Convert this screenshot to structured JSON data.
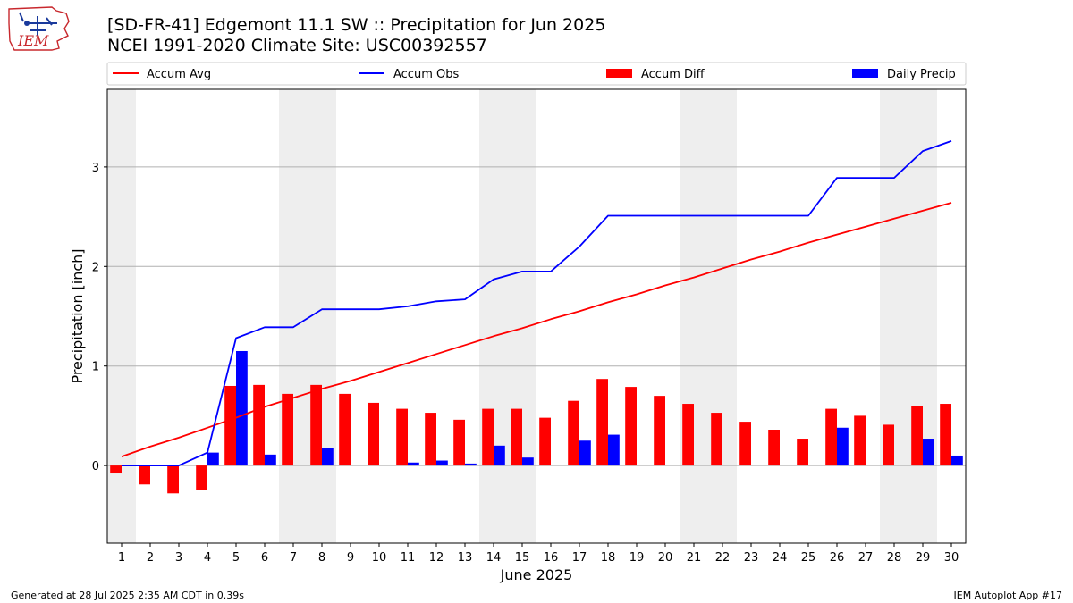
{
  "header": {
    "title_line1": "[SD-FR-41] Edgemont 11.1 SW :: Precipitation for Jun 2025",
    "title_line2": "NCEI 1991-2020 Climate Site: USC00392557"
  },
  "logo": {
    "text": "IEM",
    "icon": "iem-iowa-logo"
  },
  "footer": {
    "left": "Generated at 28 Jul 2025 2:35 AM CDT in 0.39s",
    "right": "IEM Autoplot App #17"
  },
  "colors": {
    "accum_avg": "#ff0000",
    "accum_obs": "#0000ff",
    "accum_diff": "#ff0000",
    "daily_precip": "#0000ff",
    "weekend_shade": "#eeeeee",
    "grid": "#b0b0b0"
  },
  "chart_data": {
    "type": "bar",
    "xlabel": "June 2025",
    "ylabel": "Precipitation [inch]",
    "xlim": [
      0.5,
      30.5
    ],
    "ylim": [
      -0.78,
      3.78
    ],
    "yticks": [
      0,
      1,
      2,
      3
    ],
    "grid": "y",
    "legend_position": "top",
    "weekend_days": [
      1,
      7,
      8,
      14,
      15,
      21,
      22,
      28,
      29
    ],
    "x": [
      1,
      2,
      3,
      4,
      5,
      6,
      7,
      8,
      9,
      10,
      11,
      12,
      13,
      14,
      15,
      16,
      17,
      18,
      19,
      20,
      21,
      22,
      23,
      24,
      25,
      26,
      27,
      28,
      29,
      30
    ],
    "series": [
      {
        "name": "Accum Avg",
        "kind": "line",
        "values": [
          0.09,
          0.19,
          0.28,
          0.38,
          0.48,
          0.59,
          0.68,
          0.77,
          0.85,
          0.94,
          1.03,
          1.12,
          1.21,
          1.3,
          1.38,
          1.47,
          1.55,
          1.64,
          1.72,
          1.81,
          1.89,
          1.98,
          2.07,
          2.15,
          2.24,
          2.32,
          2.4,
          2.48,
          2.56,
          2.64
        ]
      },
      {
        "name": "Accum Obs",
        "kind": "line",
        "values": [
          0.0,
          0.0,
          0.0,
          0.13,
          1.28,
          1.39,
          1.39,
          1.57,
          1.57,
          1.57,
          1.6,
          1.65,
          1.67,
          1.87,
          1.95,
          1.95,
          2.2,
          2.51,
          2.51,
          2.51,
          2.51,
          2.51,
          2.51,
          2.51,
          2.51,
          2.89,
          2.89,
          2.89,
          3.16,
          3.26
        ]
      },
      {
        "name": "Accum Diff",
        "kind": "bar",
        "values": [
          -0.08,
          -0.19,
          -0.28,
          -0.25,
          0.8,
          0.81,
          0.72,
          0.81,
          0.72,
          0.63,
          0.57,
          0.53,
          0.46,
          0.57,
          0.57,
          0.48,
          0.65,
          0.87,
          0.79,
          0.7,
          0.62,
          0.53,
          0.44,
          0.36,
          0.27,
          0.57,
          0.5,
          0.41,
          0.6,
          0.62
        ]
      },
      {
        "name": "Daily Precip",
        "kind": "bar",
        "values": [
          0.0,
          0.0,
          0.0,
          0.13,
          1.15,
          0.11,
          0.0,
          0.18,
          0.0,
          0.0,
          0.03,
          0.05,
          0.02,
          0.2,
          0.08,
          0.0,
          0.25,
          0.31,
          0.0,
          0.0,
          0.0,
          0.0,
          0.0,
          0.0,
          0.0,
          0.38,
          0.0,
          0.0,
          0.27,
          0.1
        ]
      }
    ]
  }
}
